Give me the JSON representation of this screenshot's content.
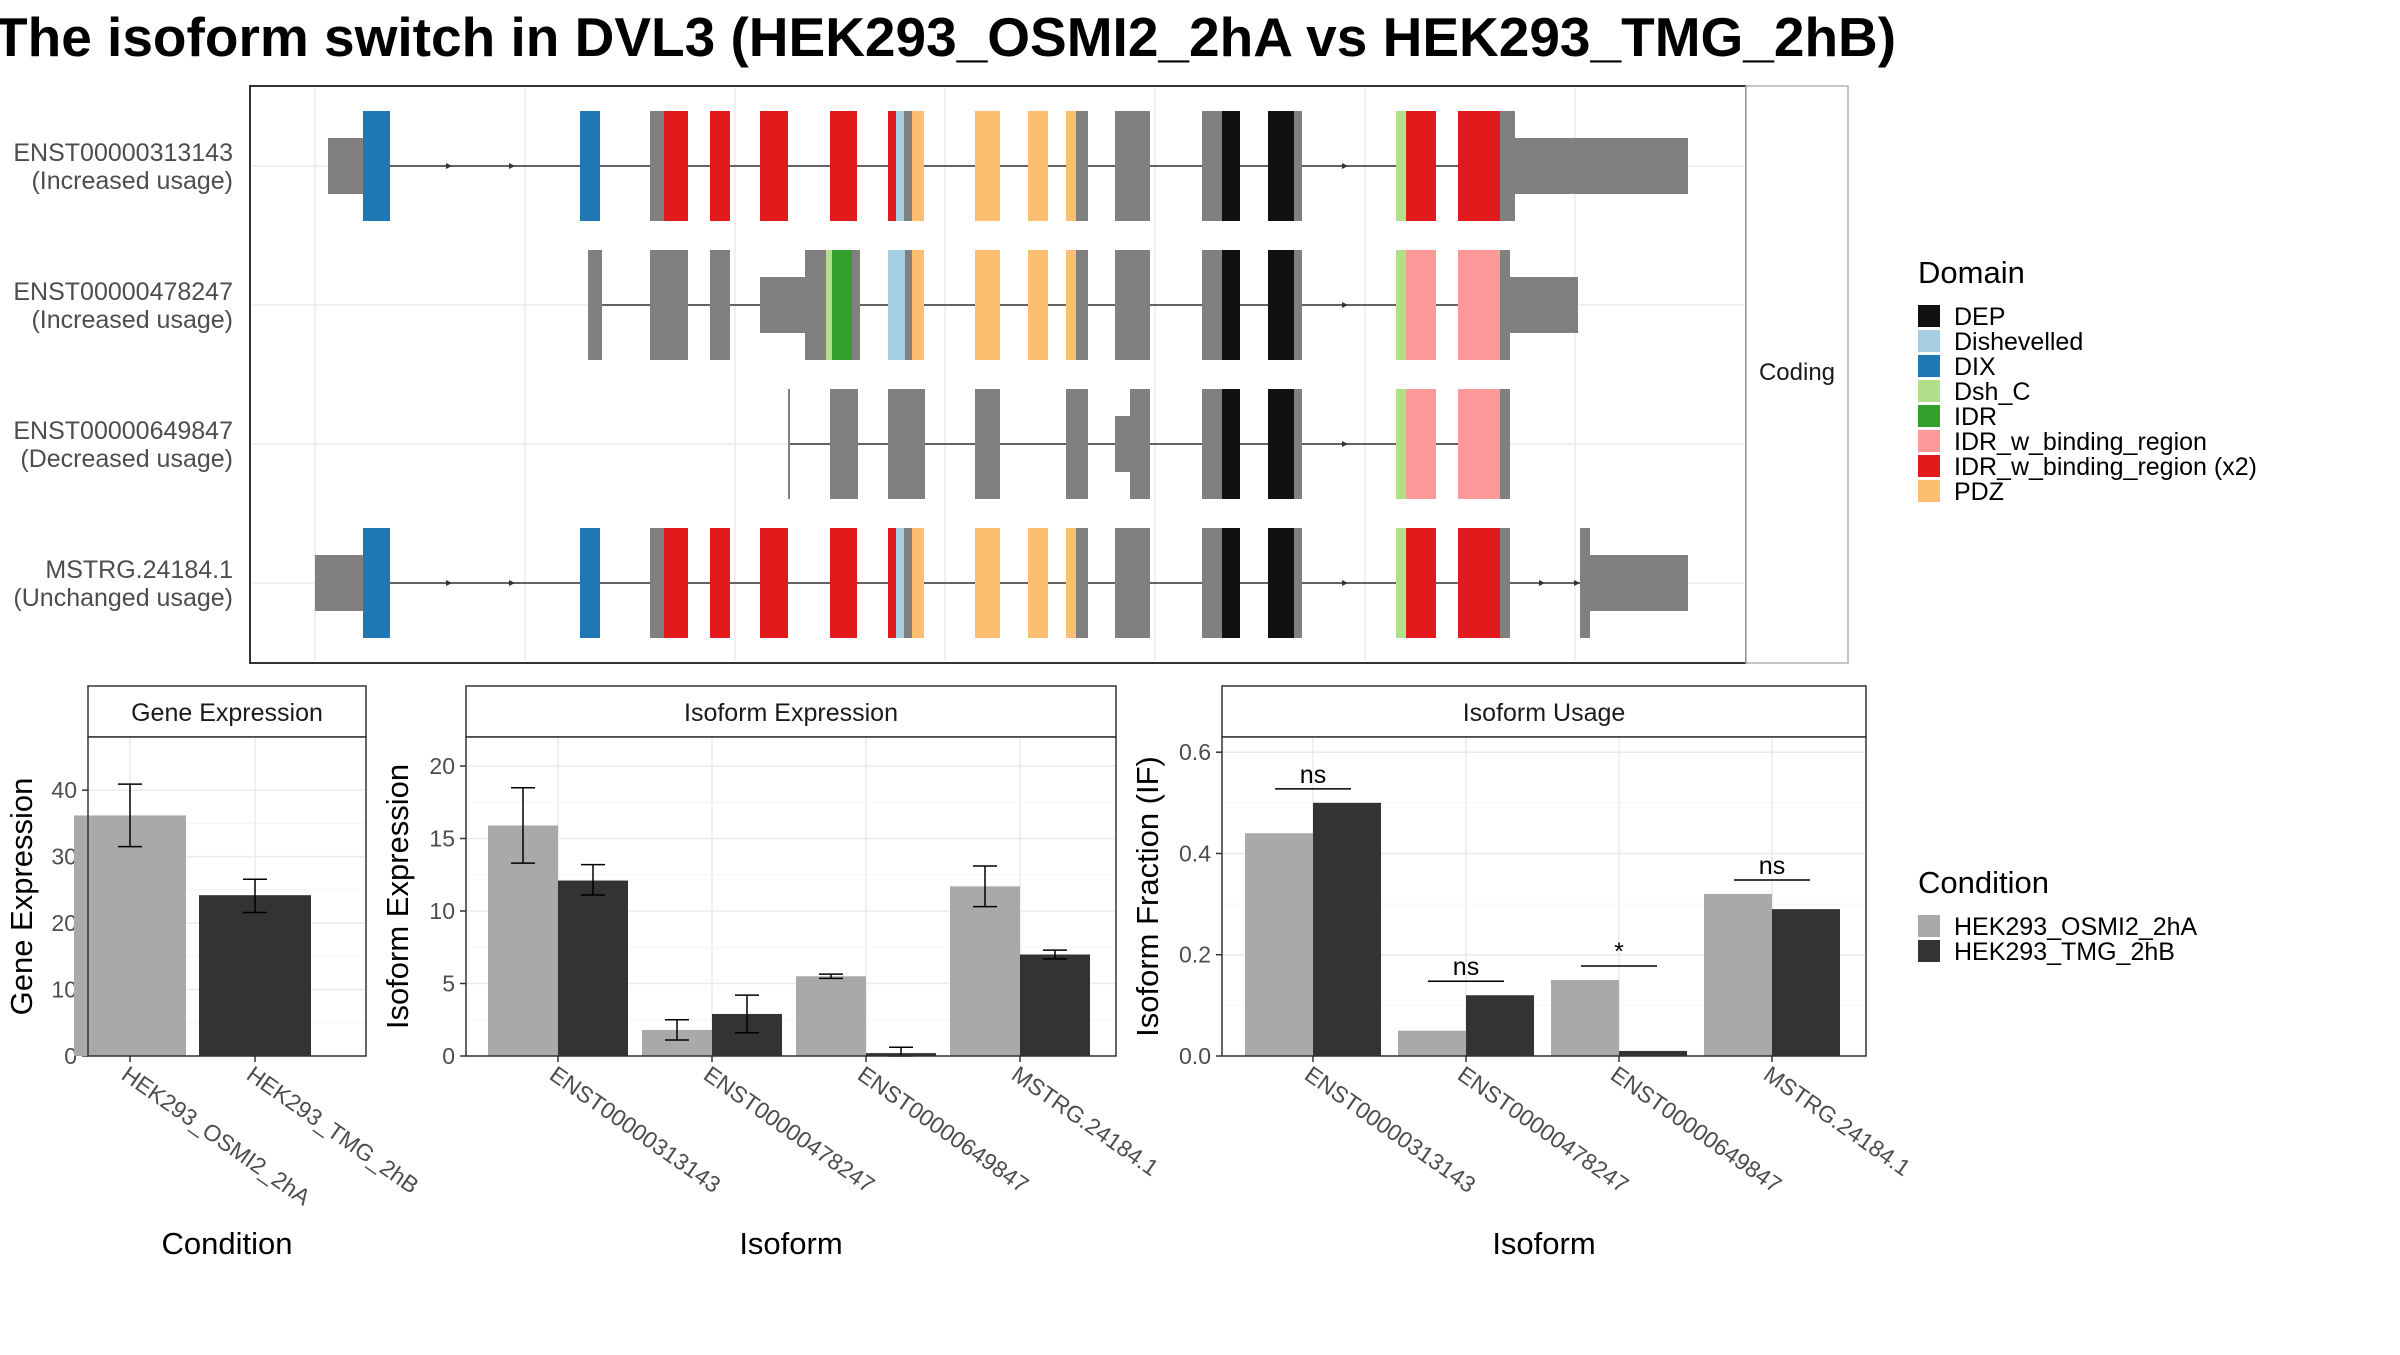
{
  "title": "The isoform switch in DVL3 (HEK293_OSMI2_2hA vs HEK293_TMG_2hB)",
  "colors": {
    "DEP": "#111111",
    "Dishevelled": "#a6cee3",
    "DIX": "#1f78b4",
    "Dsh_C": "#b2df8a",
    "IDR": "#33a02c",
    "IDR_w_binding_region": "#fb9a99",
    "IDR_w_binding_region (x2)": "#e31a1c",
    "PDZ": "#fdbf6f",
    "exon": "#808080",
    "cond1": "#a9a9a9",
    "cond2": "#333333"
  },
  "structure": {
    "strip_label": "Coding",
    "isoforms": [
      {
        "id": "ENST00000313143",
        "usage": "(Increased usage)"
      },
      {
        "id": "ENST00000478247",
        "usage": "(Increased usage)"
      },
      {
        "id": "ENST00000649847",
        "usage": "(Decreased usage)"
      },
      {
        "id": "MSTRG.24184.1",
        "usage": "(Unchanged usage)"
      }
    ]
  },
  "legend_domain": {
    "title": "Domain",
    "items": [
      "DEP",
      "Dishevelled",
      "DIX",
      "Dsh_C",
      "IDR",
      "IDR_w_binding_region",
      "IDR_w_binding_region (x2)",
      "PDZ"
    ]
  },
  "legend_condition": {
    "title": "Condition",
    "items": [
      "HEK293_OSMI2_2hA",
      "HEK293_TMG_2hB"
    ]
  },
  "chart_data": [
    {
      "type": "bar",
      "title": "Gene Expression",
      "xlabel": "Condition",
      "ylabel": "Gene Expression",
      "categories": [
        "HEK293_OSMI2_2hA",
        "HEK293_TMG_2hB"
      ],
      "values": [
        36.2,
        24.2
      ],
      "err_low": [
        31.5,
        21.6
      ],
      "err_high": [
        40.9,
        26.6
      ],
      "ylim": [
        0,
        48
      ],
      "yticks": [
        0,
        10,
        20,
        30,
        40
      ]
    },
    {
      "type": "bar",
      "title": "Isoform Expression",
      "xlabel": "Isoform",
      "ylabel": "Isoform Expression",
      "categories": [
        "ENST00000313143",
        "ENST00000478247",
        "ENST00000649847",
        "MSTRG.24184.1"
      ],
      "series": [
        {
          "name": "HEK293_OSMI2_2hA",
          "values": [
            15.9,
            1.8,
            5.5,
            11.7
          ],
          "err_low": [
            13.3,
            1.1,
            5.35,
            10.3
          ],
          "err_high": [
            18.5,
            2.5,
            5.65,
            13.1
          ]
        },
        {
          "name": "HEK293_TMG_2hB",
          "values": [
            12.1,
            2.9,
            0.2,
            7.0
          ],
          "err_low": [
            11.1,
            1.6,
            0.0,
            6.7
          ],
          "err_high": [
            13.2,
            4.2,
            0.6,
            7.3
          ]
        }
      ],
      "ylim": [
        0,
        22
      ],
      "yticks": [
        0,
        5,
        10,
        15,
        20
      ]
    },
    {
      "type": "bar",
      "title": "Isoform Usage",
      "xlabel": "Isoform",
      "ylabel": "Isoform Fraction (IF)",
      "categories": [
        "ENST00000313143",
        "ENST00000478247",
        "ENST00000649847",
        "MSTRG.24184.1"
      ],
      "series": [
        {
          "name": "HEK293_OSMI2_2hA",
          "values": [
            0.44,
            0.05,
            0.15,
            0.32
          ]
        },
        {
          "name": "HEK293_TMG_2hB",
          "values": [
            0.5,
            0.12,
            0.01,
            0.29
          ]
        }
      ],
      "significance": [
        "ns",
        "ns",
        "*",
        "ns"
      ],
      "ylim": [
        0,
        0.63
      ],
      "yticks": [
        0.0,
        0.2,
        0.4,
        0.6
      ],
      "ytick_labels": [
        "0.0",
        "0.2",
        "0.4",
        "0.6"
      ]
    }
  ]
}
